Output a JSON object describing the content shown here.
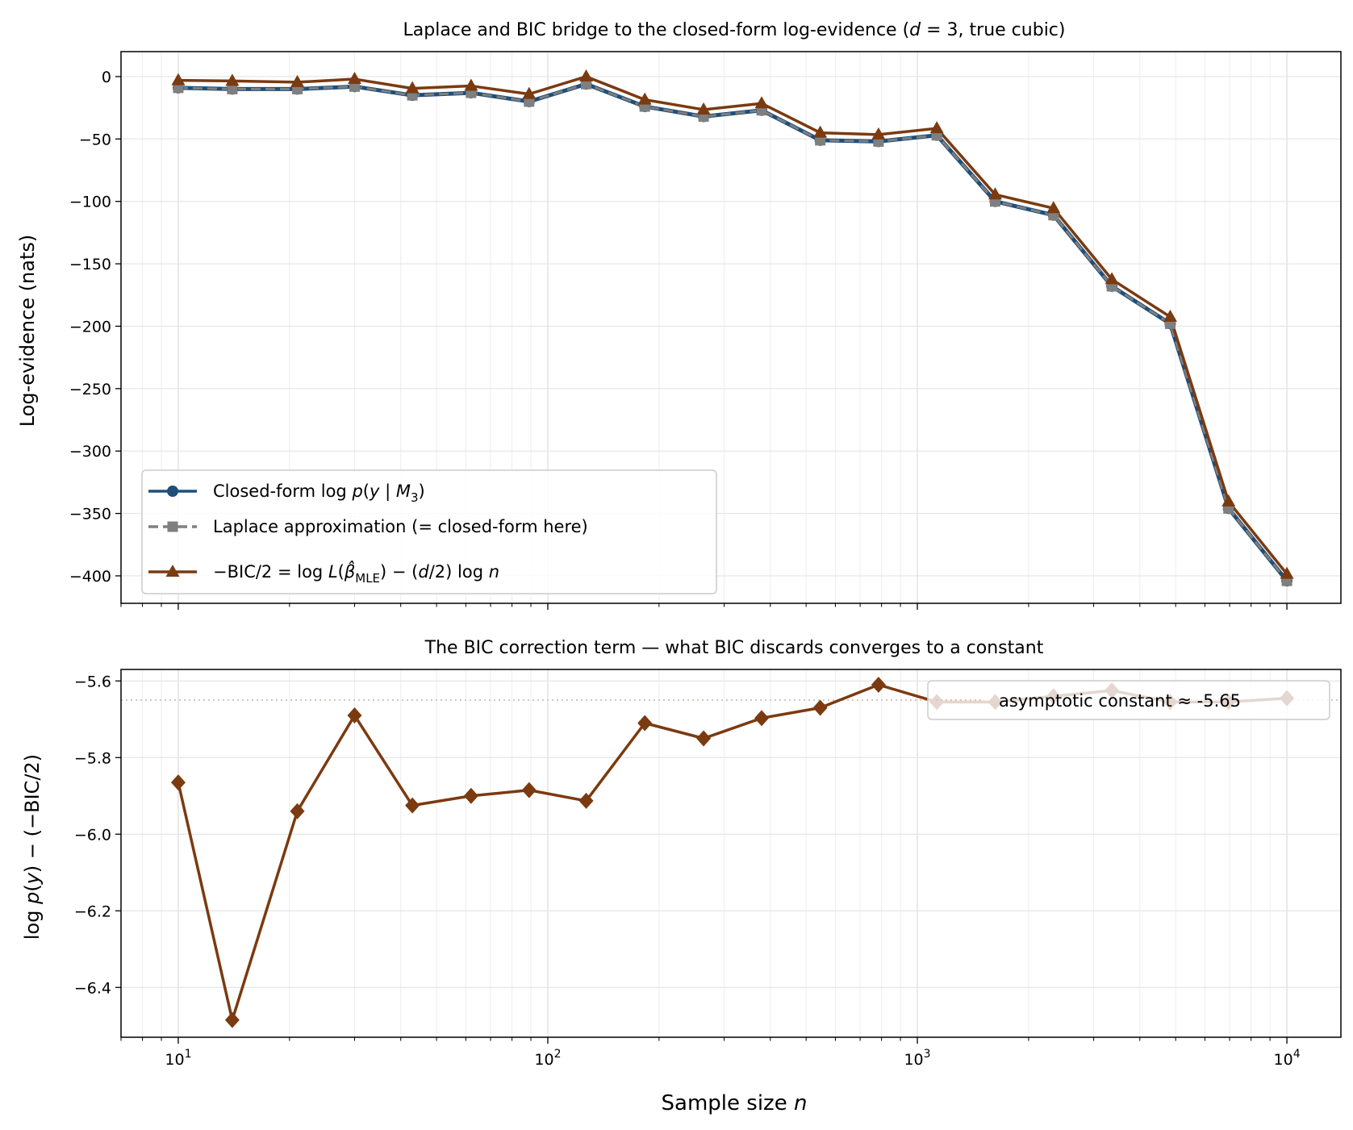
{
  "colors": {
    "closed_form": "#1f4e79",
    "laplace": "#7f7f7f",
    "bic": "#7b3a10",
    "grid": "#e4e4e4"
  },
  "chart_data": [
    {
      "type": "line",
      "title": "Laplace and BIC bridge to the closed-form log-evidence (d = 3, true cubic)",
      "xlabel": "",
      "ylabel": "Log-evidence (nats)",
      "xscale": "log",
      "xlim": [
        7.0,
        14000
      ],
      "ylim": [
        -422,
        20
      ],
      "x": [
        10,
        14,
        21,
        30,
        43,
        62,
        89,
        127,
        183,
        264,
        379,
        546,
        785,
        1129,
        1624,
        2336,
        3360,
        4833,
        6952,
        10000
      ],
      "yticks": [
        0,
        -50,
        -100,
        -150,
        -200,
        -250,
        -300,
        -350,
        -400
      ],
      "yticklabels": [
        "0",
        "−50",
        "−100",
        "−150",
        "−200",
        "−250",
        "−300",
        "−350",
        "−400"
      ],
      "grid": true,
      "legend_position": "lower-left",
      "series": [
        {
          "name": "Closed-form log p(y | M3)",
          "marker": "circle",
          "style": "solid",
          "color": "#1f4e79",
          "values": [
            -9,
            -10,
            -10,
            -8,
            -15,
            -13,
            -20,
            -6,
            -24,
            -32,
            -27,
            -51,
            -52,
            -47,
            -100,
            -111,
            -168,
            -198,
            -346,
            -404
          ]
        },
        {
          "name": "Laplace approximation (= closed-form here)",
          "marker": "square",
          "style": "dashed",
          "color": "#7f7f7f",
          "values": [
            -9,
            -10,
            -10,
            -8,
            -15,
            -13,
            -20,
            -6,
            -24,
            -32,
            -27,
            -51,
            -52,
            -47,
            -100,
            -111,
            -168,
            -198,
            -346,
            -404
          ]
        },
        {
          "name": "−BIC/2 = log L(β̂MLE) − (d/2) log n",
          "marker": "triangle",
          "style": "solid",
          "color": "#7b3a10",
          "values": [
            -3,
            -3.5,
            -4.5,
            -2,
            -9.5,
            -7.5,
            -14,
            0,
            -18.5,
            -26.5,
            -21.5,
            -45,
            -46.5,
            -41.5,
            -94.5,
            -105.5,
            -162.5,
            -192.5,
            -340.5,
            -398.5
          ]
        }
      ]
    },
    {
      "type": "line",
      "title": "The BIC correction term — what BIC discards converges to a constant",
      "xlabel": "Sample size n",
      "ylabel": "log p(y) − (−BIC/2)",
      "xscale": "log",
      "xlim": [
        7.0,
        14000
      ],
      "ylim": [
        -6.53,
        -5.57
      ],
      "x": [
        10,
        14,
        21,
        30,
        43,
        62,
        89,
        127,
        183,
        264,
        379,
        546,
        785,
        1129,
        1624,
        2336,
        3360,
        4833,
        6952,
        10000
      ],
      "yticks": [
        -5.6,
        -5.8,
        -6.0,
        -6.2,
        -6.4
      ],
      "yticklabels": [
        "−5.6",
        "−5.8",
        "−6.0",
        "−6.2",
        "−6.4"
      ],
      "xticklabels": [
        "10",
        "10",
        "10",
        "10"
      ],
      "xtick_exponents": [
        "1",
        "2",
        "3",
        "4"
      ],
      "grid": true,
      "legend_position": "upper-right",
      "reference_line": {
        "value": -5.65,
        "label": "asymptotic constant ≈ -5.65",
        "style": "dotted"
      },
      "series": [
        {
          "name": "",
          "marker": "diamond",
          "style": "solid",
          "color": "#7b3a10",
          "values": [
            -5.865,
            -6.485,
            -5.94,
            -5.69,
            -5.925,
            -5.9,
            -5.885,
            -5.913,
            -5.71,
            -5.75,
            -5.697,
            -5.67,
            -5.61,
            -5.655,
            -5.655,
            -5.64,
            -5.625,
            -5.655,
            -5.655,
            -5.645
          ]
        }
      ]
    }
  ]
}
